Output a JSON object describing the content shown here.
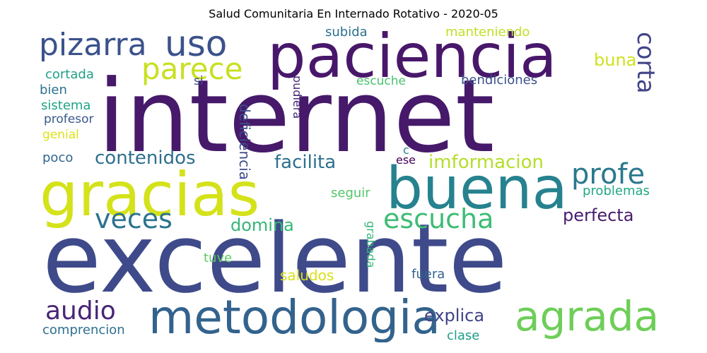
{
  "chart_data": {
    "type": "wordcloud",
    "title": "Salud Comunitaria En Internado Rotativo - 2020-05",
    "background": "#ffffff",
    "colormap": "viridis",
    "words": [
      {
        "text": "internet",
        "rank": 1,
        "color": "#46196a"
      },
      {
        "text": "excelente",
        "rank": 2,
        "color": "#3f4a8a"
      },
      {
        "text": "paciencia",
        "rank": 3,
        "color": "#48176a"
      },
      {
        "text": "gracias",
        "rank": 4,
        "color": "#d4e21a"
      },
      {
        "text": "buena",
        "rank": 5,
        "color": "#26828e"
      },
      {
        "text": "metodologia",
        "rank": 6,
        "color": "#33638d"
      },
      {
        "text": "agrada",
        "rank": 7,
        "color": "#6ece58"
      },
      {
        "text": "uso",
        "rank": 8,
        "color": "#3b528b"
      },
      {
        "text": "pizarra",
        "rank": 9,
        "color": "#3b528b"
      },
      {
        "text": "parece",
        "rank": 10,
        "color": "#c8e020"
      },
      {
        "text": "profe",
        "rank": 11,
        "color": "#2a788e"
      },
      {
        "text": "escucha",
        "rank": 12,
        "color": "#3dbc74"
      },
      {
        "text": "veces",
        "rank": 13,
        "color": "#2c728e"
      },
      {
        "text": "audio",
        "rank": 14,
        "color": "#482475"
      },
      {
        "text": "corta",
        "rank": 15,
        "color": "#414487"
      },
      {
        "text": "contenidos",
        "rank": 16,
        "color": "#2e6f8e"
      },
      {
        "text": "facilita",
        "rank": 17,
        "color": "#2d708e"
      },
      {
        "text": "imformacion",
        "rank": 18,
        "color": "#b5de2b"
      },
      {
        "text": "perfecta",
        "rank": 19,
        "color": "#481b6d"
      },
      {
        "text": "domina",
        "rank": 20,
        "color": "#35b779"
      },
      {
        "text": "explica",
        "rank": 21,
        "color": "#404387"
      },
      {
        "text": "buna",
        "rank": 22,
        "color": "#d0e11c"
      },
      {
        "text": "deficiencia",
        "rank": 23,
        "color": "#3e4c8a"
      },
      {
        "text": "pudiera",
        "rank": 24,
        "color": "#482878"
      },
      {
        "text": "bendiciones",
        "rank": 25,
        "color": "#3b528b"
      },
      {
        "text": "manteniendo",
        "rank": 26,
        "color": "#c0df25"
      },
      {
        "text": "subida",
        "rank": 27,
        "color": "#2c728e"
      },
      {
        "text": "escuche",
        "rank": 28,
        "color": "#4ac16d"
      },
      {
        "text": "si",
        "rank": 29,
        "color": "#3e4989"
      },
      {
        "text": "cortada",
        "rank": 30,
        "color": "#1fa187"
      },
      {
        "text": "bien",
        "rank": 31,
        "color": "#2c728e"
      },
      {
        "text": "sistema",
        "rank": 32,
        "color": "#20a386"
      },
      {
        "text": "profesor",
        "rank": 33,
        "color": "#38588c"
      },
      {
        "text": "genial",
        "rank": 34,
        "color": "#dde318"
      },
      {
        "text": "poco",
        "rank": 35,
        "color": "#31668e"
      },
      {
        "text": "c",
        "rank": 36,
        "color": "#26828e"
      },
      {
        "text": "ese",
        "rank": 37,
        "color": "#440154"
      },
      {
        "text": "seguir",
        "rank": 38,
        "color": "#52c569"
      },
      {
        "text": "problemas",
        "rank": 39,
        "color": "#22a884"
      },
      {
        "text": "grabada",
        "rank": 40,
        "color": "#35b779"
      },
      {
        "text": "tuve",
        "rank": 41,
        "color": "#5ec962"
      },
      {
        "text": "saludos",
        "rank": 42,
        "color": "#d8e219"
      },
      {
        "text": "fuera",
        "rank": 43,
        "color": "#33638d"
      },
      {
        "text": "comprencion",
        "rank": 44,
        "color": "#2d708e"
      },
      {
        "text": "clase",
        "rank": 45,
        "color": "#1f9e89"
      }
    ]
  }
}
